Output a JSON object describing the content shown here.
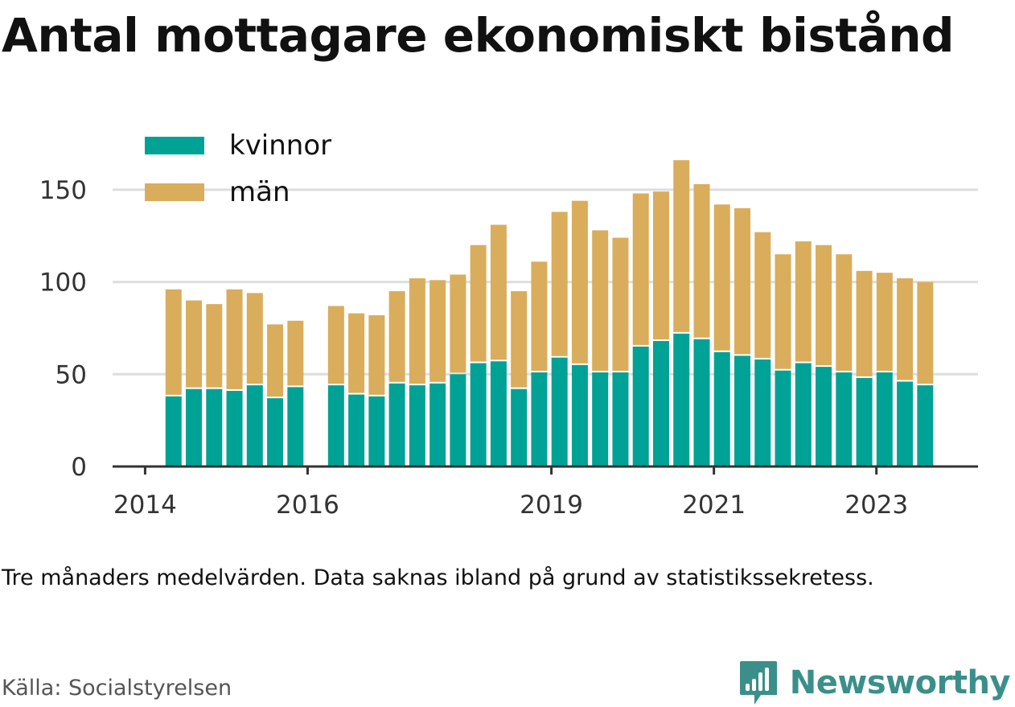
{
  "title": "Antal mottagare ekonomiskt bistånd",
  "note": "Tre månaders medelvärden. Data saknas ibland på grund av statistikssekretess.",
  "source": "Källa: Socialstyrelsen",
  "brand": {
    "name": "Newsworthy",
    "icon": "newsworthy-bar-chart-logo-icon",
    "color": "#3a8f8a"
  },
  "chart_data": {
    "type": "bar",
    "stacked": true,
    "xlim": [
      2013.6,
      2024.25
    ],
    "ylim": [
      0,
      170
    ],
    "x_ticks": [
      2014,
      2016,
      2019,
      2021,
      2023
    ],
    "y_ticks": [
      0,
      50,
      100,
      150
    ],
    "grid": true,
    "legend_position": "top-left",
    "x": [
      2014.35,
      2014.6,
      2014.85,
      2015.1,
      2015.35,
      2015.6,
      2015.85,
      2016.35,
      2016.6,
      2016.85,
      2017.1,
      2017.35,
      2017.6,
      2017.85,
      2018.1,
      2018.35,
      2018.6,
      2018.85,
      2019.1,
      2019.35,
      2019.6,
      2019.85,
      2020.1,
      2020.35,
      2020.6,
      2020.85,
      2021.1,
      2021.35,
      2021.6,
      2021.85,
      2022.1,
      2022.35,
      2022.6,
      2022.85,
      2023.1,
      2023.35,
      2023.6
    ],
    "series": [
      {
        "name": "kvinnor",
        "color": "#00a295",
        "values": [
          38,
          42,
          42,
          41,
          44,
          37,
          43,
          44,
          39,
          38,
          45,
          44,
          45,
          50,
          56,
          57,
          42,
          51,
          59,
          55,
          51,
          51,
          65,
          68,
          72,
          69,
          62,
          60,
          58,
          52,
          56,
          54,
          51,
          48,
          51,
          46,
          44
        ]
      },
      {
        "name": "män",
        "color": "#d9ad5b",
        "values": [
          58,
          48,
          46,
          55,
          50,
          40,
          36,
          43,
          44,
          44,
          50,
          58,
          56,
          54,
          64,
          74,
          53,
          60,
          79,
          89,
          77,
          73,
          83,
          81,
          94,
          84,
          80,
          80,
          69,
          63,
          66,
          66,
          64,
          58,
          54,
          56,
          56
        ]
      }
    ]
  }
}
